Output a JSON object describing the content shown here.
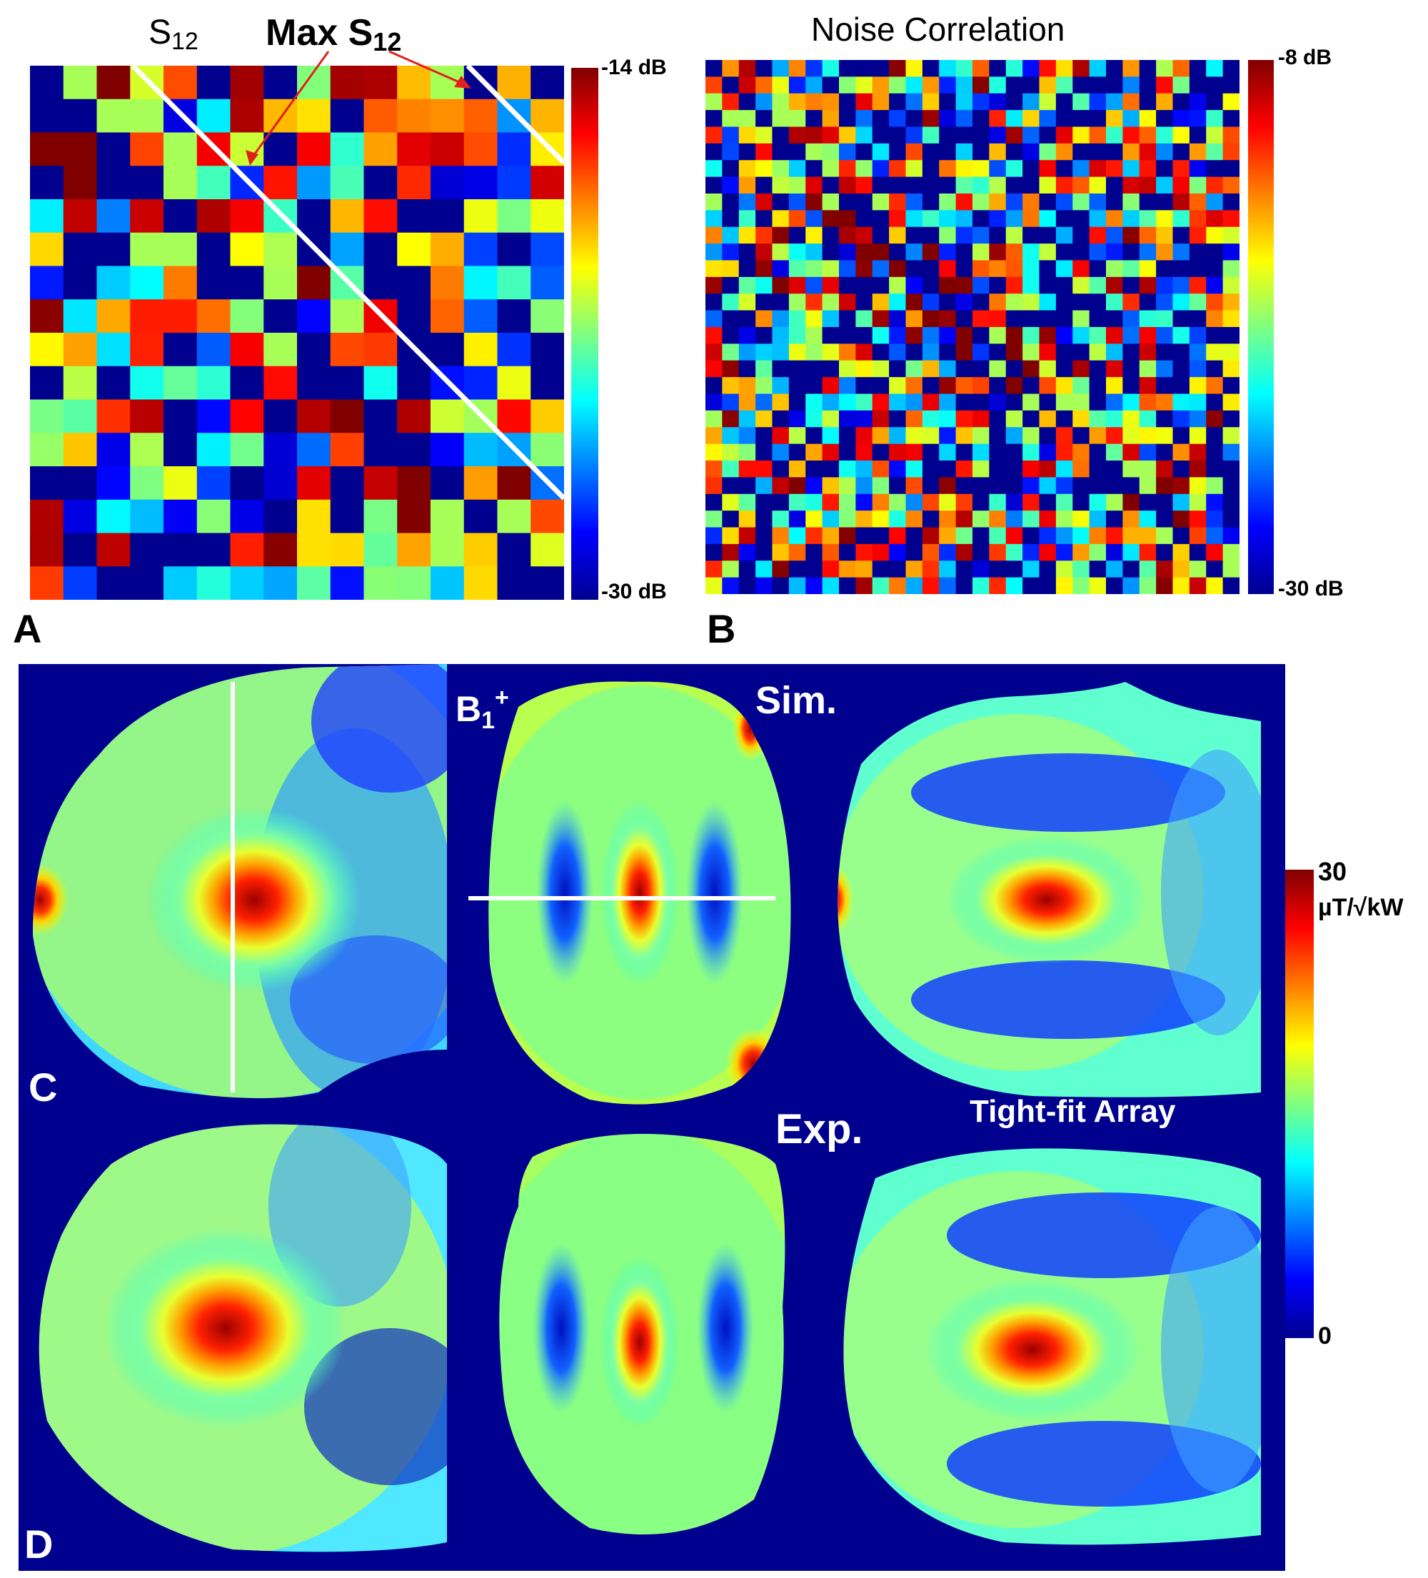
{
  "panel_a": {
    "title_s12": "S",
    "title_s12_sub": "12",
    "title_max": "Max S",
    "title_max_sub": "12",
    "colorbar_max": "-14 dB",
    "colorbar_min": "-30 dB",
    "letter": "A"
  },
  "panel_b": {
    "title": "Noise Correlation",
    "colorbar_max": "-8 dB",
    "colorbar_min": "-30 dB",
    "letter": "B"
  },
  "panel_c": {
    "b1_label": "B",
    "b1_sub": "1",
    "b1_sup": "+",
    "sim_label": "Sim.",
    "letter": "C"
  },
  "panel_d": {
    "exp_label": "Exp.",
    "array_label": "Tight-fit Array",
    "letter": "D"
  },
  "b1_colorbar": {
    "max_value": "30",
    "unit": "µT/√kW",
    "min_value": "0"
  },
  "colors": {
    "background_map": "#00008f",
    "annotation_arrow": "#e0201a",
    "guide_line": "#ffffff"
  },
  "chart_data": [
    {
      "type": "heatmap",
      "title": "S12",
      "grid_size": 16,
      "colorbar_range_db": [
        -30,
        -14
      ],
      "colormap": "jet"
    },
    {
      "type": "heatmap",
      "title": "Noise Correlation",
      "grid_size": 32,
      "colorbar_range_db": [
        -30,
        -8
      ],
      "colormap": "jet"
    },
    {
      "type": "heatmap",
      "title": "B1+ maps (Sim. / Exp.)",
      "colorbar_range": [
        0,
        30
      ],
      "colorbar_unit": "µT/√kW",
      "colormap": "jet"
    }
  ]
}
